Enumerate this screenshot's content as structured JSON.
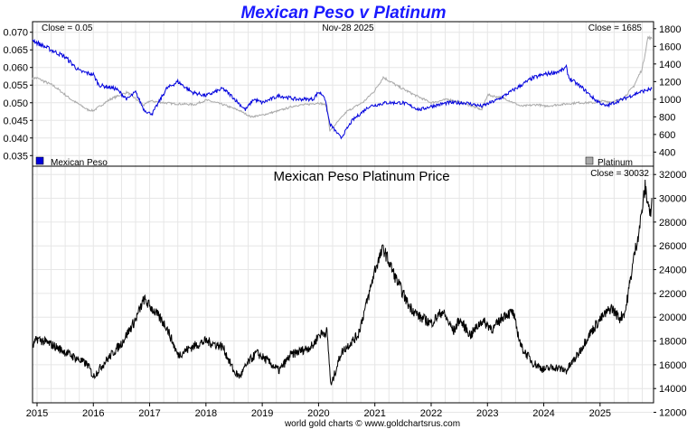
{
  "chart_data": [
    {
      "type": "line",
      "title": "Mexican Peso v Platinum",
      "date_label": "Nov-28  2025",
      "close_left": "Close = 0.05",
      "close_right": "Close = 1685",
      "left_axis": {
        "ylim": [
          0.032,
          0.073
        ],
        "ticks": [
          "0.070",
          "0.065",
          "0.060",
          "0.055",
          "0.050",
          "0.045",
          "0.040",
          "0.035"
        ]
      },
      "right_axis": {
        "ylim": [
          240,
          1880
        ],
        "ticks": [
          "1800",
          "1600",
          "1400",
          "1200",
          "1000",
          "800",
          "600",
          "400"
        ]
      },
      "x_ticks": [
        "2015",
        "2016",
        "2017",
        "2018",
        "2019",
        "2020",
        "2021",
        "2022",
        "2023",
        "2024",
        "2025"
      ],
      "series": [
        {
          "name": "Mexican Peso",
          "axis": "left",
          "color": "#0000dd",
          "x": [
            2014.92,
            2015.0,
            2015.25,
            2015.5,
            2015.75,
            2016.0,
            2016.1,
            2016.4,
            2016.6,
            2016.75,
            2016.9,
            2017.0,
            2017.05,
            2017.3,
            2017.5,
            2017.75,
            2018.0,
            2018.3,
            2018.45,
            2018.7,
            2018.85,
            2019.0,
            2019.3,
            2019.6,
            2019.9,
            2020.0,
            2020.1,
            2020.2,
            2020.4,
            2020.6,
            2020.9,
            2021.2,
            2021.5,
            2021.8,
            2022.0,
            2022.3,
            2022.6,
            2022.9,
            2023.2,
            2023.5,
            2023.8,
            2024.0,
            2024.3,
            2024.4,
            2024.45,
            2024.7,
            2024.9,
            2025.1,
            2025.4,
            2025.7,
            2025.92
          ],
          "values": [
            0.068,
            0.067,
            0.065,
            0.063,
            0.059,
            0.058,
            0.055,
            0.054,
            0.051,
            0.053,
            0.048,
            0.047,
            0.047,
            0.054,
            0.056,
            0.053,
            0.052,
            0.054,
            0.052,
            0.048,
            0.051,
            0.05,
            0.052,
            0.051,
            0.051,
            0.053,
            0.052,
            0.044,
            0.04,
            0.045,
            0.049,
            0.05,
            0.05,
            0.048,
            0.049,
            0.05,
            0.05,
            0.049,
            0.051,
            0.054,
            0.057,
            0.058,
            0.059,
            0.06,
            0.057,
            0.054,
            0.051,
            0.049,
            0.051,
            0.053,
            0.054
          ]
        },
        {
          "name": "Platinum",
          "axis": "right",
          "color": "#aaaaaa",
          "x": [
            2014.92,
            2015.0,
            2015.3,
            2015.6,
            2015.9,
            2016.0,
            2016.3,
            2016.6,
            2016.9,
            2017.0,
            2017.4,
            2017.8,
            2018.0,
            2018.3,
            2018.6,
            2018.8,
            2019.0,
            2019.3,
            2019.6,
            2019.8,
            2020.0,
            2020.15,
            2020.2,
            2020.5,
            2020.8,
            2021.0,
            2021.15,
            2021.4,
            2021.7,
            2022.0,
            2022.3,
            2022.6,
            2022.9,
            2023.0,
            2023.3,
            2023.6,
            2023.9,
            2024.0,
            2024.3,
            2024.6,
            2024.9,
            2025.0,
            2025.2,
            2025.4,
            2025.6,
            2025.75,
            2025.85,
            2025.92
          ],
          "values": [
            1240,
            1240,
            1150,
            1000,
            880,
            870,
            1000,
            1080,
            930,
            980,
            950,
            940,
            990,
            940,
            870,
            800,
            820,
            870,
            930,
            940,
            960,
            930,
            640,
            860,
            970,
            1100,
            1250,
            1150,
            1050,
            960,
            1000,
            950,
            880,
            1050,
            1010,
            920,
            940,
            920,
            940,
            960,
            960,
            980,
            970,
            1000,
            1150,
            1350,
            1700,
            1685
          ]
        },
        {
          "name": "Mexican Peso Platinum Price",
          "color": "#000000",
          "close": "Close = 30032",
          "ylim": [
            12800,
            32700
          ],
          "ticks": [
            "32000",
            "30000",
            "28000",
            "26000",
            "24000",
            "22000",
            "20000",
            "18000",
            "16000",
            "14000",
            "12000"
          ],
          "x": [
            2014.92,
            2015.0,
            2015.3,
            2015.6,
            2015.9,
            2016.0,
            2016.2,
            2016.5,
            2016.75,
            2016.9,
            2017.1,
            2017.3,
            2017.5,
            2017.75,
            2018.0,
            2018.3,
            2018.5,
            2018.6,
            2018.75,
            2018.9,
            2019.1,
            2019.3,
            2019.5,
            2019.7,
            2019.9,
            2020.0,
            2020.15,
            2020.22,
            2020.4,
            2020.7,
            2020.9,
            2021.0,
            2021.15,
            2021.35,
            2021.6,
            2021.8,
            2022.0,
            2022.2,
            2022.4,
            2022.5,
            2022.7,
            2022.9,
            2023.1,
            2023.3,
            2023.45,
            2023.6,
            2023.8,
            2024.0,
            2024.2,
            2024.4,
            2024.6,
            2024.8,
            2025.0,
            2025.2,
            2025.35,
            2025.45,
            2025.6,
            2025.7,
            2025.8,
            2025.9,
            2025.92
          ],
          "values": [
            17500,
            18200,
            17600,
            16800,
            16000,
            15000,
            16200,
            17800,
            19800,
            21500,
            20400,
            19200,
            16800,
            17500,
            18000,
            17500,
            15400,
            15000,
            16200,
            17000,
            16300,
            15500,
            16800,
            17200,
            17600,
            18500,
            18800,
            14200,
            17000,
            18500,
            22000,
            24000,
            25800,
            23500,
            21000,
            20000,
            19500,
            20500,
            18800,
            19800,
            18500,
            19700,
            19000,
            20200,
            20400,
            17500,
            16200,
            15600,
            15800,
            15500,
            16800,
            18500,
            19800,
            20800,
            19900,
            20500,
            25000,
            27500,
            30900,
            28500,
            30032
          ]
        }
      ],
      "legend": [
        "Mexican Peso",
        "Platinum"
      ],
      "footer": "world gold charts © www.goldchartsrus.com"
    }
  ]
}
